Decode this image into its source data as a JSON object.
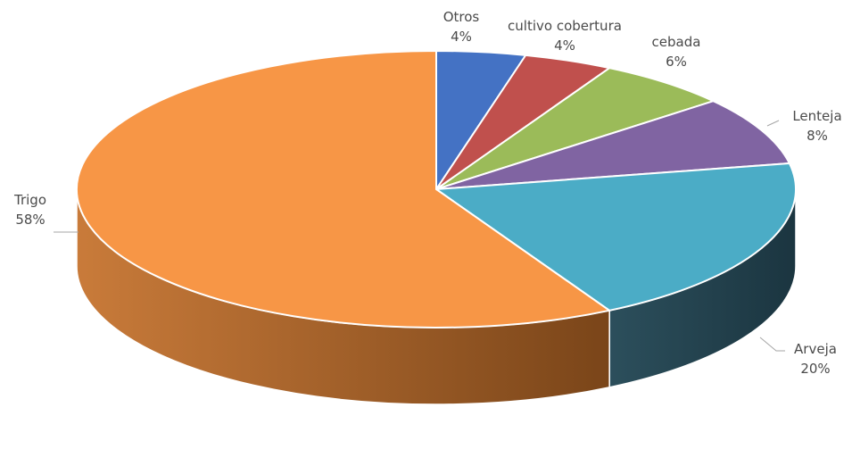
{
  "chart_data": {
    "type": "pie",
    "title": "",
    "slices": [
      {
        "label": "Otros",
        "value": 4,
        "value_label": "4%",
        "color": "#4472C4"
      },
      {
        "label": "cultivo cobertura",
        "value": 4,
        "value_label": "4%",
        "color": "#C0504D"
      },
      {
        "label": "cebada",
        "value": 6,
        "value_label": "6%",
        "color": "#9BBB59"
      },
      {
        "label": "Lenteja",
        "value": 8,
        "value_label": "8%",
        "color": "#8064A2"
      },
      {
        "label": "Arveja",
        "value": 20,
        "value_label": "20%",
        "color": "#4BACC6"
      },
      {
        "label": "Trigo",
        "value": 58,
        "value_label": "58%",
        "color": "#F79646"
      }
    ],
    "style": "3d"
  }
}
